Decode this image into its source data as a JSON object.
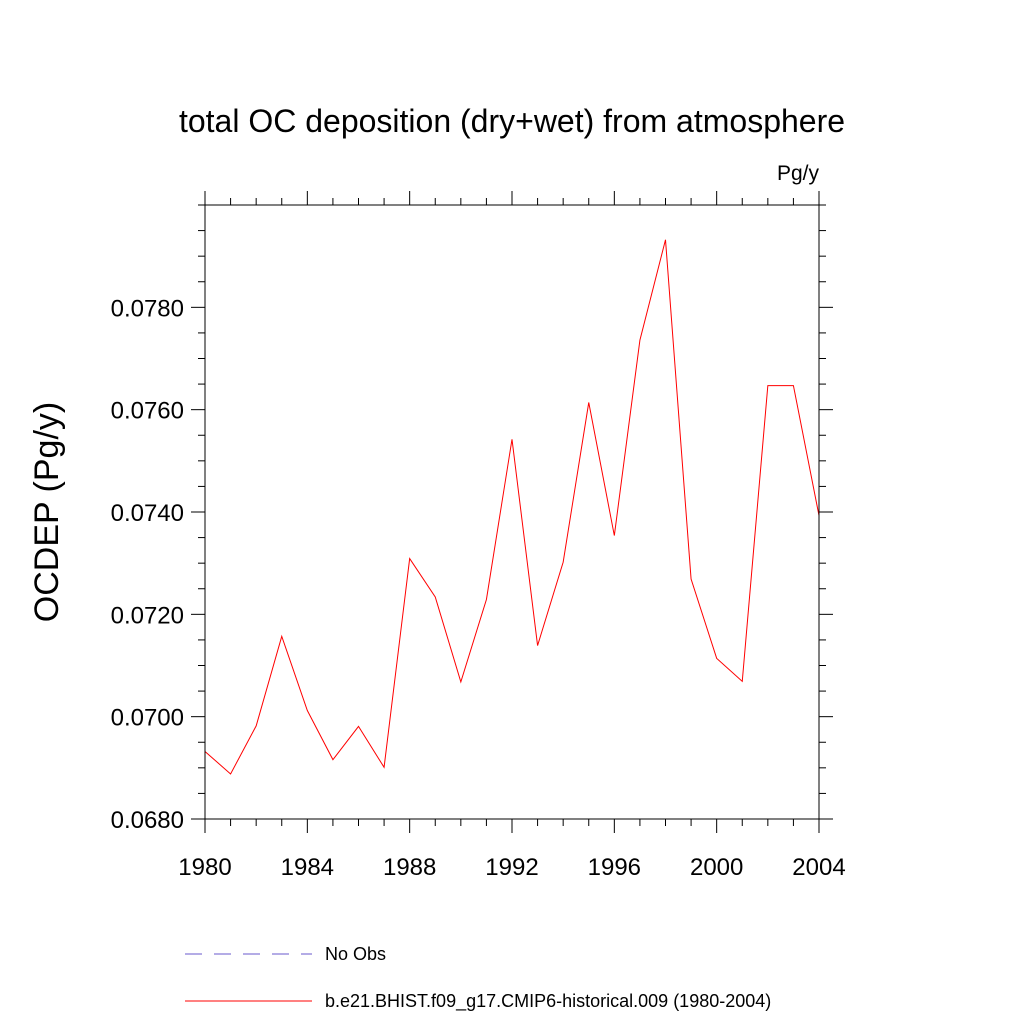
{
  "chart_data": {
    "type": "line",
    "title": "total OC deposition (dry+wet) from atmosphere",
    "units_label": "Pg/y",
    "ylabel": "OCDEP  (Pg/y)",
    "xlabel": "",
    "xlim": [
      1980,
      2004
    ],
    "ylim": [
      0.068,
      0.08
    ],
    "x_ticks": [
      1980,
      1984,
      1988,
      1992,
      1996,
      2000,
      2004
    ],
    "x_tick_labels": [
      "1980",
      "1984",
      "1988",
      "1992",
      "1996",
      "2000",
      "2004"
    ],
    "y_ticks": [
      0.068,
      0.07,
      0.072,
      0.074,
      0.076,
      0.078
    ],
    "y_tick_labels": [
      "0.0680",
      "0.0700",
      "0.0720",
      "0.0740",
      "0.0760",
      "0.0780"
    ],
    "grid": false,
    "series": [
      {
        "name": "No Obs",
        "color": "#6a5acd",
        "style": "dashed",
        "x": [],
        "values": []
      },
      {
        "name": "b.e21.BHIST.f09_g17.CMIP6-historical.009 (1980-2004)",
        "color": "#ff0000",
        "style": "solid",
        "x": [
          1980,
          1981,
          1982,
          1983,
          1984,
          1985,
          1986,
          1987,
          1988,
          1989,
          1990,
          1991,
          1992,
          1993,
          1994,
          1995,
          1996,
          1997,
          1998,
          1999,
          2000,
          2001,
          2002,
          2003,
          2004
        ],
        "values": [
          0.06932,
          0.06888,
          0.06982,
          0.07157,
          0.07012,
          0.06916,
          0.06981,
          0.06901,
          0.07309,
          0.07234,
          0.07068,
          0.07229,
          0.07542,
          0.07139,
          0.07302,
          0.07614,
          0.07354,
          0.07736,
          0.07932,
          0.07269,
          0.07114,
          0.07069,
          0.07647,
          0.07647,
          0.07393
        ]
      }
    ],
    "legend_position": "bottom"
  }
}
